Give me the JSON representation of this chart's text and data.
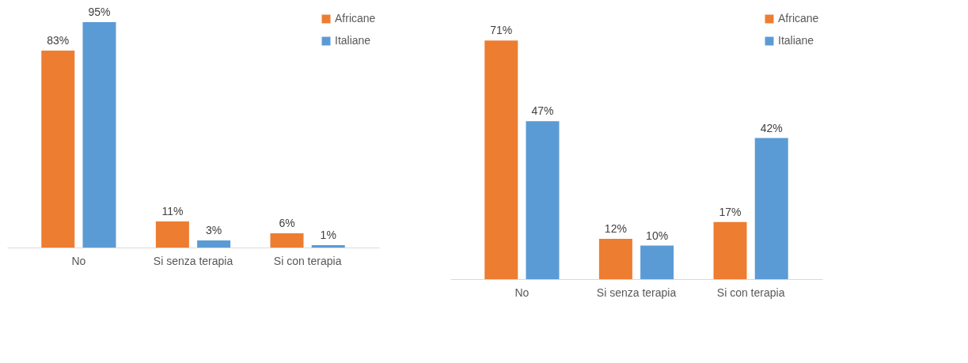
{
  "chart_data": [
    {
      "type": "bar",
      "categories": [
        "No",
        "Si senza terapia",
        "Si con terapia"
      ],
      "legend": "top right",
      "series": [
        {
          "name": "Africane",
          "color": "#ed7d31",
          "values": [
            83,
            11,
            6
          ],
          "value_labels": [
            "83%",
            "11%",
            "6%"
          ]
        },
        {
          "name": "Italiane",
          "color": "#5b9bd5",
          "values": [
            95,
            3,
            1
          ],
          "value_labels": [
            "95%",
            "3%",
            "1%"
          ]
        }
      ]
    },
    {
      "type": "bar",
      "categories": [
        "No",
        "Si senza terapia",
        "Si con terapia"
      ],
      "legend": "top right",
      "series": [
        {
          "name": "Africane",
          "color": "#ed7d31",
          "values": [
            71,
            12,
            17
          ],
          "value_labels": [
            "71%",
            "12%",
            "17%"
          ]
        },
        {
          "name": "Italiane",
          "color": "#5b9bd5",
          "values": [
            47,
            10,
            42
          ],
          "value_labels": [
            "47%",
            "10%",
            "42%"
          ]
        }
      ]
    }
  ]
}
